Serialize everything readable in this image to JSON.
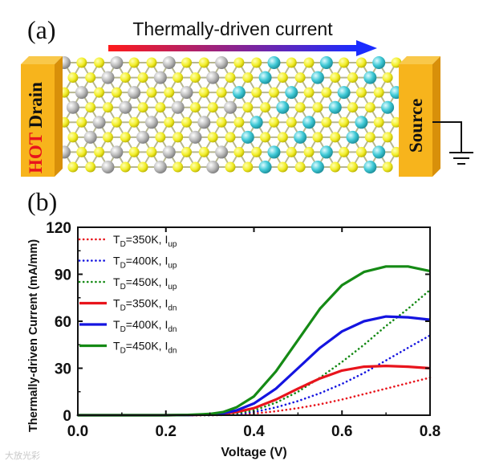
{
  "panel_a": {
    "label": "(a)",
    "arrow_caption": "Thermally-driven current",
    "drain_hot": "HOT",
    "drain_word": "Drain",
    "source_word": "Source",
    "colors": {
      "electrode": "#f7b41c",
      "electrode_side": "#d8900a",
      "atom_s": "#f2ee28",
      "atom_grey": "#bdbdbd",
      "atom_cyan": "#3fc9d6",
      "hot_text": "#e8141c"
    }
  },
  "panel_b": {
    "label": "(b)"
  },
  "watermark": "大放光彩",
  "chart_data": {
    "type": "line",
    "xlabel": "Voltage (V)",
    "ylabel": "Thermally-driven Current (mA/mm)",
    "xlim": [
      0.0,
      0.8
    ],
    "ylim": [
      0,
      120
    ],
    "xticks": [
      "0.0",
      "0.2",
      "0.4",
      "0.6",
      "0.8"
    ],
    "yticks": [
      "0",
      "30",
      "60",
      "90",
      "120"
    ],
    "xtick_values": [
      0.0,
      0.2,
      0.4,
      0.6,
      0.8
    ],
    "ytick_values": [
      0,
      30,
      60,
      90,
      120
    ],
    "legend_position": "top-left",
    "x": [
      0.0,
      0.1,
      0.2,
      0.25,
      0.3,
      0.33,
      0.36,
      0.4,
      0.45,
      0.5,
      0.55,
      0.6,
      0.65,
      0.7,
      0.75,
      0.8
    ],
    "series": [
      {
        "name": "T_D=350K, I_up",
        "temp": "T",
        "sub": "D",
        "eq": "=350K, I",
        "isub": "up",
        "color": "#e8141c",
        "style": "dotted",
        "values": [
          0,
          0,
          0,
          0,
          0,
          0.1,
          0.4,
          1,
          2.5,
          4.5,
          7,
          10,
          13.5,
          17,
          20.5,
          24
        ]
      },
      {
        "name": "T_D=400K, I_up",
        "temp": "T",
        "sub": "D",
        "eq": "=400K, I",
        "isub": "up",
        "color": "#1414e0",
        "style": "dotted",
        "values": [
          0,
          0,
          0,
          0,
          0,
          0.2,
          0.8,
          2,
          5,
          9,
          14,
          20,
          27,
          35,
          43,
          51
        ]
      },
      {
        "name": "T_D=450K, I_up",
        "temp": "T",
        "sub": "D",
        "eq": "=450K, I",
        "isub": "up",
        "color": "#158a15",
        "style": "dotted",
        "values": [
          0,
          0,
          0,
          0,
          0,
          0.4,
          1.2,
          3,
          8,
          15,
          24,
          34,
          45,
          57,
          68,
          80
        ]
      },
      {
        "name": "T_D=350K, I_dn",
        "temp": "T",
        "sub": "D",
        "eq": "=350K, I",
        "isub": "dn",
        "color": "#e8141c",
        "style": "solid",
        "values": [
          0,
          0,
          0,
          0.1,
          0.4,
          1,
          2,
          4.5,
          10,
          17,
          23.5,
          28.5,
          31,
          31.5,
          31,
          30
        ]
      },
      {
        "name": "T_D=400K, I_dn",
        "temp": "T",
        "sub": "D",
        "eq": "=400K, I",
        "isub": "dn",
        "color": "#1414e0",
        "style": "solid",
        "values": [
          0,
          0,
          0,
          0.1,
          0.5,
          1.3,
          3,
          7.5,
          17,
          30,
          43,
          53.5,
          60,
          63,
          62.5,
          61
        ]
      },
      {
        "name": "T_D=450K, I_dn",
        "temp": "T",
        "sub": "D",
        "eq": "=450K, I",
        "isub": "dn",
        "color": "#158a15",
        "style": "solid",
        "values": [
          0,
          0,
          0,
          0.2,
          0.8,
          2,
          5,
          12,
          28,
          48,
          68,
          83,
          91.5,
          95,
          95,
          92
        ]
      }
    ]
  }
}
